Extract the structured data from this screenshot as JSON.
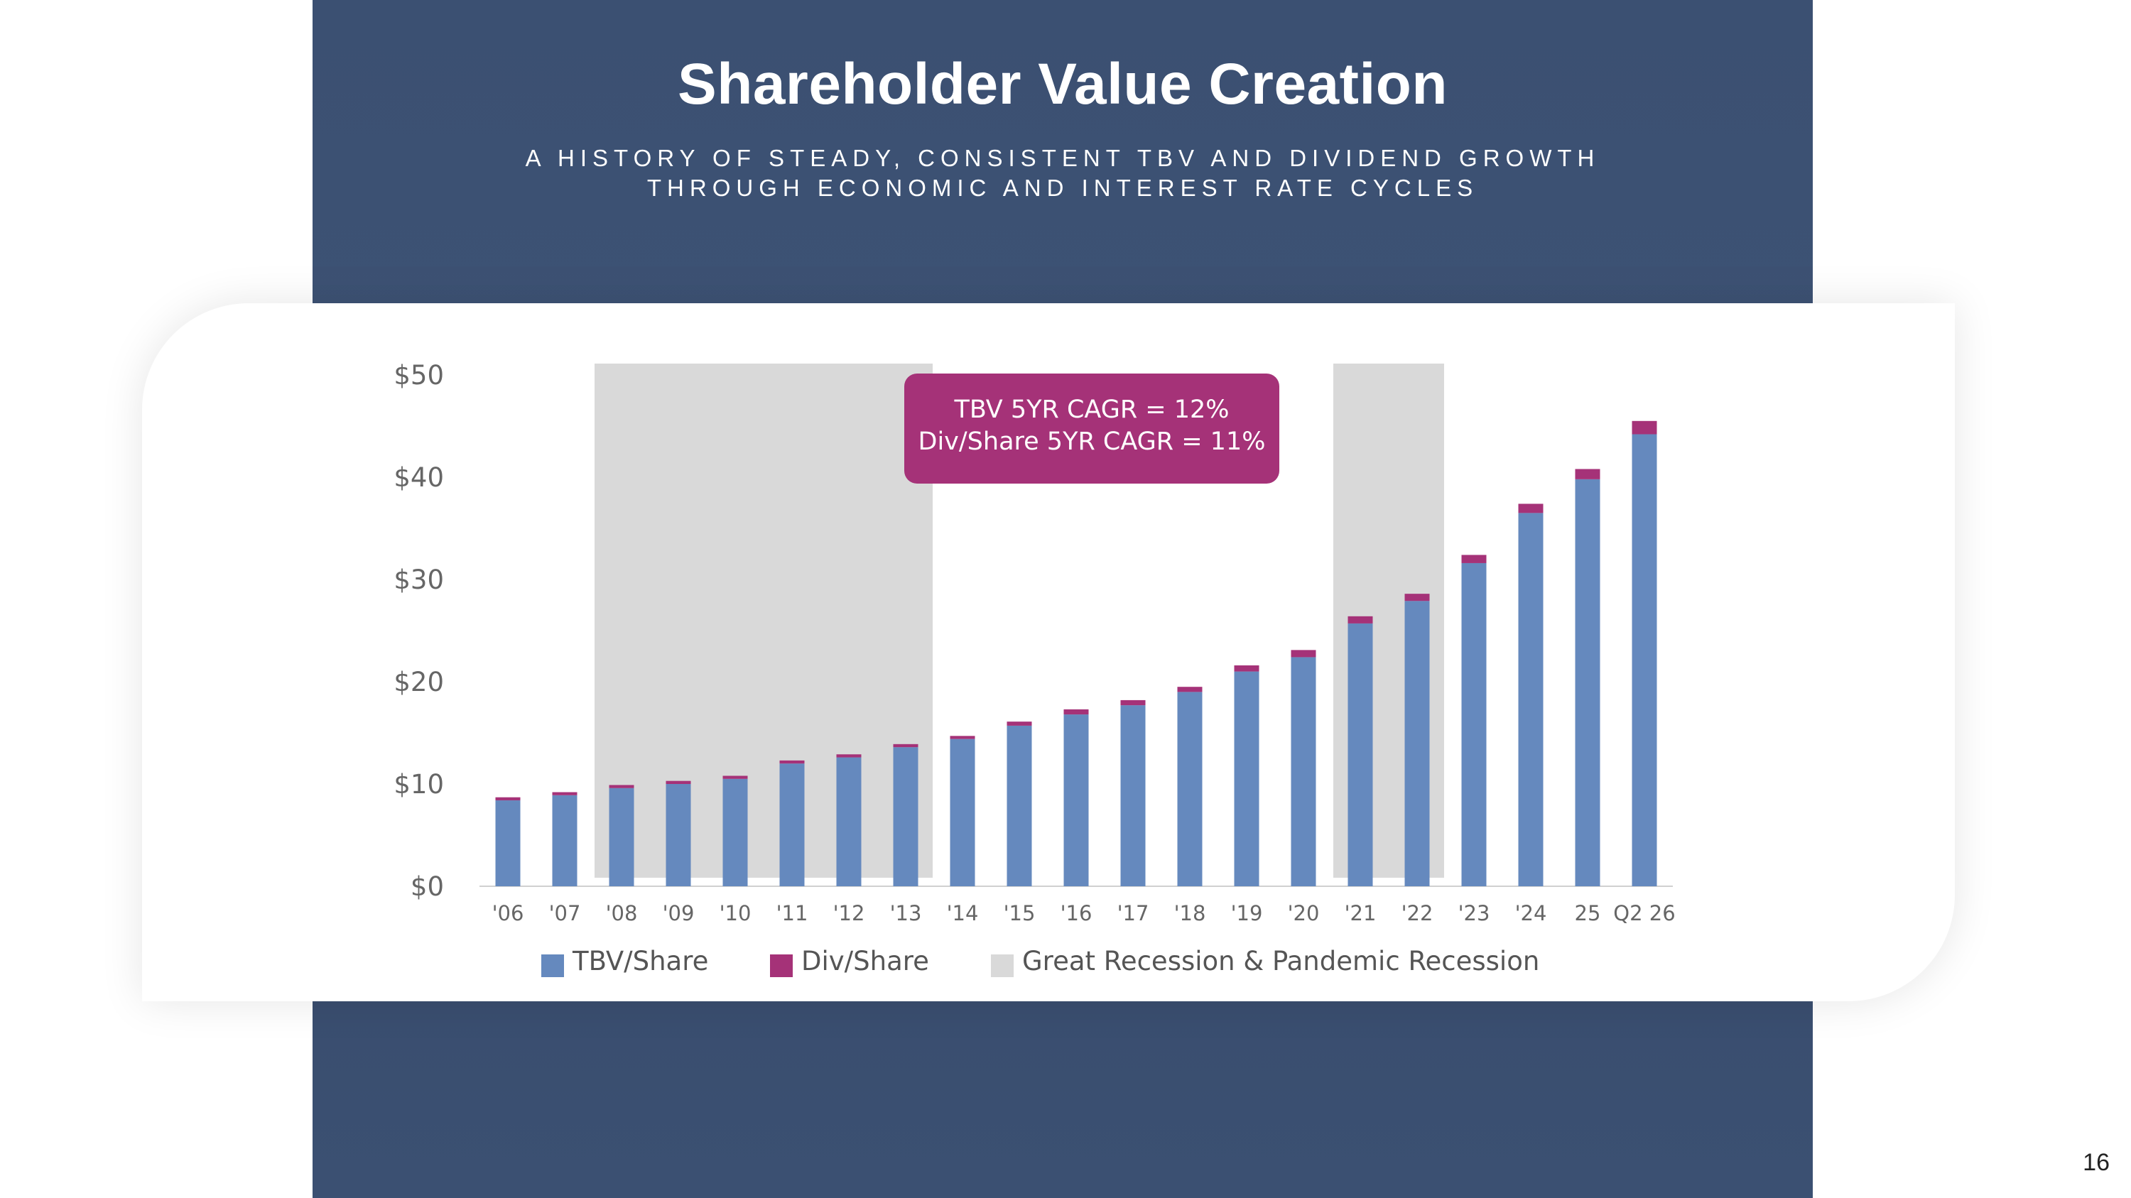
{
  "header": {
    "title": "Shareholder Value Creation",
    "subtitle": "A HISTORY OF STEADY, CONSISTENT TBV AND DIVIDEND GROWTH THROUGH ECONOMIC AND INTEREST RATE CYCLES"
  },
  "page_number": "16",
  "colors": {
    "navy": "#3b5072",
    "tbv": "#6589be",
    "div": "#a53278",
    "recession": "#d9d9d9"
  },
  "annotation": {
    "line1": "TBV 5YR CAGR = 12%",
    "line2": "Div/Share 5YR CAGR = 11%"
  },
  "chart_data": {
    "type": "bar",
    "stacked": true,
    "categories": [
      "'06",
      "'07",
      "'08",
      "'09",
      "'10",
      "'11",
      "'12",
      "'13",
      "'14",
      "'15",
      "'16",
      "'17",
      "'18",
      "'19",
      "'20",
      "'21",
      "'22",
      "'23",
      "'24",
      "25",
      "Q2 26"
    ],
    "series": [
      {
        "name": "TBV/Share",
        "values": [
          8.4,
          8.9,
          9.6,
          10.0,
          10.5,
          12.0,
          12.6,
          13.6,
          14.4,
          15.7,
          16.8,
          17.7,
          19.0,
          21.0,
          22.4,
          25.7,
          27.9,
          31.6,
          36.5,
          39.8,
          44.2
        ]
      },
      {
        "name": "Div/Share",
        "values": [
          0.3,
          0.3,
          0.3,
          0.3,
          0.3,
          0.3,
          0.3,
          0.3,
          0.3,
          0.4,
          0.5,
          0.5,
          0.5,
          0.6,
          0.7,
          0.7,
          0.7,
          0.8,
          0.9,
          1.0,
          1.3
        ]
      }
    ],
    "recession_label": "Great Recession & Pandemic Recession",
    "recession_spans": [
      [
        "'08",
        "'13"
      ],
      [
        "'21",
        "'22"
      ]
    ],
    "yticks": [
      "$0",
      "$10",
      "$20",
      "$30",
      "$40",
      "$50"
    ],
    "ylim": [
      0,
      50
    ],
    "legend": "bottom"
  }
}
